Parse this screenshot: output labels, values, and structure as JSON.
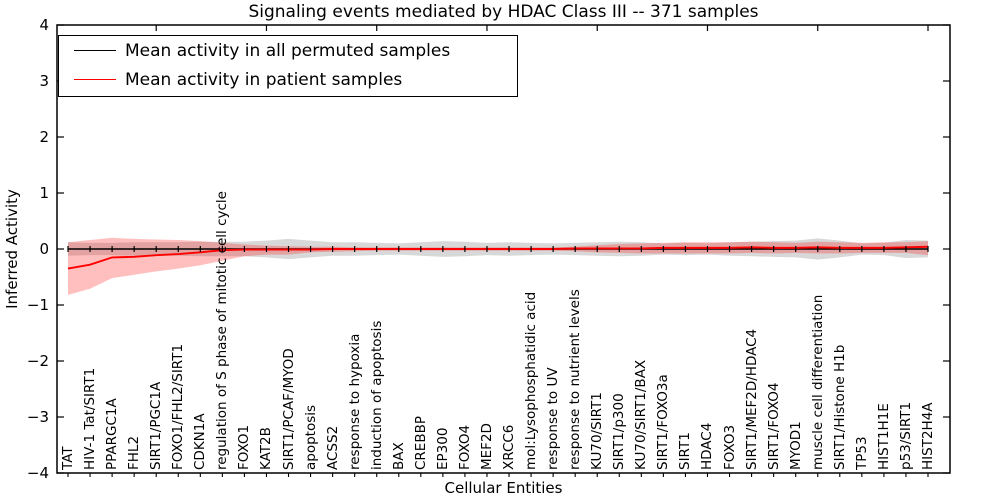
{
  "chart_data": {
    "type": "line",
    "title": "Signaling events mediated by HDAC Class III -- 371 samples",
    "xlabel": "Cellular Entities",
    "ylabel": "Inferred Activity",
    "ylim": [
      -4,
      4
    ],
    "grid": false,
    "legend_position": "upper left",
    "ytick_labels": [
      "4",
      "3",
      "2",
      "1",
      "0",
      "−1",
      "−2",
      "−3",
      "−4"
    ],
    "ytick_values": [
      4,
      3,
      2,
      1,
      0,
      -1,
      -2,
      -3,
      -4
    ],
    "categories": [
      "TAT",
      "HIV-1 Tat/SIRT1",
      "PPARGC1A",
      "FHL2",
      "SIRT1/PGC1A",
      "FOXO1/FHL2/SIRT1",
      "CDKN1A",
      "regulation of S phase of mitotic cell cycle",
      "FOXO1",
      "KAT2B",
      "SIRT1/PCAF/MYOD",
      "apoptosis",
      "ACSS2",
      "response to hypoxia",
      "induction of apoptosis",
      "BAX",
      "CREBBP",
      "EP300",
      "FOXO4",
      "MEF2D",
      "XRCC6",
      "mol:Lysophosphatidic acid",
      "response to UV",
      "response to nutrient levels",
      "KU70/SIRT1",
      "SIRT1/p300",
      "KU70/SIRT1/BAX",
      "SIRT1/FOXO3a",
      "SIRT1",
      "HDAC4",
      "FOXO3",
      "SIRT1/MEF2D/HDAC4",
      "SIRT1/FOXO4",
      "MYOD1",
      "muscle cell differentiation",
      "SIRT1/Histone H1b",
      "TP53",
      "HIST1H1E",
      "p53/SIRT1",
      "HIST2H4A"
    ],
    "series": [
      {
        "name": "Mean activity in all permuted samples",
        "color": "#000000",
        "band_color": "#7f7f7f",
        "band_opacity": 0.3,
        "values": [
          0,
          0,
          0,
          0,
          0,
          0,
          0,
          0,
          0,
          0,
          0,
          0,
          0,
          0,
          0,
          0,
          0,
          0,
          0,
          0,
          0,
          0,
          0,
          0,
          0,
          0,
          0,
          0,
          0,
          0,
          0,
          0,
          0,
          0,
          0,
          0,
          0,
          0,
          0,
          0
        ],
        "band_half_width": [
          0.12,
          0.11,
          0.11,
          0.12,
          0.12,
          0.12,
          0.13,
          0.13,
          0.13,
          0.15,
          0.18,
          0.15,
          0.12,
          0.12,
          0.11,
          0.1,
          0.12,
          0.14,
          0.13,
          0.11,
          0.12,
          0.11,
          0.1,
          0.11,
          0.12,
          0.13,
          0.12,
          0.1,
          0.11,
          0.1,
          0.12,
          0.13,
          0.14,
          0.15,
          0.19,
          0.15,
          0.1,
          0.11,
          0.16,
          0.15
        ]
      },
      {
        "name": "Mean activity in patient samples",
        "color": "#ff0000",
        "band_color": "#ff0000",
        "band_opacity": 0.25,
        "values": [
          -0.35,
          -0.28,
          -0.15,
          -0.14,
          -0.11,
          -0.09,
          -0.06,
          -0.02,
          -0.01,
          -0.01,
          -0.01,
          -0.01,
          0,
          0,
          0,
          0,
          0,
          0,
          0,
          0,
          0,
          0,
          0,
          0.01,
          0.01,
          0.01,
          0.01,
          0.02,
          0.02,
          0.02,
          0.02,
          0.03,
          0.02,
          0.02,
          0.03,
          0.02,
          0.02,
          0.02,
          0.03,
          0.04
        ],
        "band_upper": [
          0.12,
          0.16,
          0.2,
          0.18,
          0.17,
          0.16,
          0.14,
          0.11,
          0.08,
          0.06,
          0.05,
          0.04,
          0.04,
          0.03,
          0.03,
          0.03,
          0.03,
          0.03,
          0.03,
          0.03,
          0.03,
          0.03,
          0.03,
          0.04,
          0.07,
          0.09,
          0.1,
          0.11,
          0.12,
          0.12,
          0.12,
          0.13,
          0.12,
          0.11,
          0.13,
          0.12,
          0.11,
          0.12,
          0.12,
          0.14
        ],
        "band_lower": [
          -0.82,
          -0.71,
          -0.52,
          -0.46,
          -0.4,
          -0.35,
          -0.29,
          -0.21,
          -0.13,
          -0.1,
          -0.1,
          -0.06,
          -0.05,
          -0.04,
          -0.03,
          -0.03,
          -0.03,
          -0.03,
          -0.03,
          -0.03,
          -0.03,
          -0.03,
          -0.03,
          -0.04,
          -0.06,
          -0.07,
          -0.08,
          -0.08,
          -0.08,
          -0.08,
          -0.08,
          -0.07,
          -0.08,
          -0.07,
          -0.08,
          -0.08,
          -0.07,
          -0.07,
          -0.07,
          -0.11
        ]
      }
    ]
  }
}
